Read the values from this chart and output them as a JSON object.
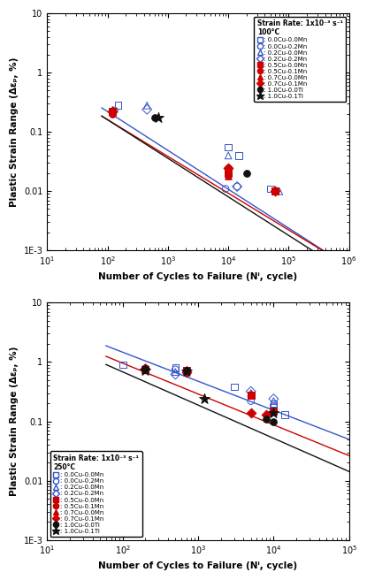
{
  "top": {
    "title_line1": "Strain Rate: 1x10⁻³ s⁻¹",
    "title_line2": "100°C",
    "xlim": [
      10,
      1000000
    ],
    "ylim": [
      0.001,
      10
    ],
    "xlabel": "Number of Cycles to Failure (Nⁱ, cycle)",
    "ylabel": "Plastic Strain Range (Δεₚ, %)",
    "blue_series": {
      "sq": {
        "x": [
          150,
          10000,
          15000,
          50000
        ],
        "y": [
          0.28,
          0.055,
          0.04,
          0.011
        ]
      },
      "ci": {
        "x": [
          130,
          9000,
          14000
        ],
        "y": [
          0.23,
          0.011,
          0.012
        ]
      },
      "tr": {
        "x": [
          450,
          10000,
          70000
        ],
        "y": [
          0.28,
          0.04,
          0.01
        ]
      },
      "di": {
        "x": [
          450,
          14000
        ],
        "y": [
          0.24,
          0.012
        ]
      }
    },
    "red_series": {
      "sq": {
        "x": [
          120,
          10000,
          60000
        ],
        "y": [
          0.22,
          0.02,
          0.01
        ]
      },
      "ci": {
        "x": [
          120,
          10000,
          60000
        ],
        "y": [
          0.2,
          0.025,
          0.01
        ]
      },
      "tr": {
        "x": [
          120,
          10000,
          60000
        ],
        "y": [
          0.24,
          0.018,
          0.01
        ]
      },
      "di": {
        "x": [
          120,
          10000,
          60000
        ],
        "y": [
          0.22,
          0.025,
          0.01
        ]
      }
    },
    "black_series": {
      "ci": {
        "x": [
          600,
          20000
        ],
        "y": [
          0.175,
          0.02
        ]
      },
      "st": {
        "x": [
          700
        ],
        "y": [
          0.175
        ]
      }
    },
    "blue_line": {
      "x0": 80,
      "x1": 1000000,
      "C": 4.5,
      "c": -0.655
    },
    "red_line": {
      "x0": 80,
      "x1": 1000000,
      "C": 2.8,
      "c": -0.62
    },
    "black_line": {
      "x0": 80,
      "x1": 1000000,
      "C": 3.2,
      "c": -0.65
    }
  },
  "bottom": {
    "title_line1": "Strain Rate: 1x10⁻³ s⁻¹",
    "title_line2": "250°C",
    "xlim": [
      10,
      100000
    ],
    "ylim": [
      0.001,
      10
    ],
    "xlabel": "Number of Cycles to Failure (Nⁱ, cycle)",
    "ylabel": "Plastic Strain Range (Δεₚ, %)",
    "blue_series": {
      "sq": {
        "x": [
          100,
          500,
          3000,
          5000,
          10000,
          14000
        ],
        "y": [
          0.9,
          0.8,
          0.38,
          0.28,
          0.2,
          0.13
        ]
      },
      "ci": {
        "x": [
          500,
          700,
          5000,
          10000
        ],
        "y": [
          0.75,
          0.68,
          0.22,
          0.18
        ]
      },
      "tr": {
        "x": [
          500,
          5000,
          10000
        ],
        "y": [
          0.68,
          0.3,
          0.22
        ]
      },
      "di": {
        "x": [
          500,
          5000,
          10000
        ],
        "y": [
          0.62,
          0.32,
          0.24
        ]
      }
    },
    "red_series": {
      "sq": {
        "x": [
          200,
          700,
          5000,
          10000
        ],
        "y": [
          0.75,
          0.72,
          0.28,
          0.15
        ]
      },
      "ci": {
        "x": [
          200,
          700,
          5000,
          10000
        ],
        "y": [
          0.8,
          0.68,
          0.28,
          0.15
        ]
      },
      "tr": {
        "x": [
          200,
          700,
          5000,
          10000
        ],
        "y": [
          0.82,
          0.72,
          0.3,
          0.15
        ]
      },
      "di": {
        "x": [
          200,
          700,
          5000,
          8000
        ],
        "y": [
          0.78,
          0.68,
          0.14,
          0.13
        ]
      }
    },
    "black_series": {
      "ci": {
        "x": [
          200,
          700,
          8000,
          10000
        ],
        "y": [
          0.78,
          0.72,
          0.11,
          0.1
        ]
      },
      "st": {
        "x": [
          200,
          700,
          1200,
          10000
        ],
        "y": [
          0.72,
          0.7,
          0.24,
          0.14
        ]
      }
    },
    "blue_line": {
      "x0": 60,
      "x1": 100000,
      "C": 14.0,
      "c": -0.49
    },
    "red_line": {
      "x0": 60,
      "x1": 100000,
      "C": 10.5,
      "c": -0.52
    },
    "black_line": {
      "x0": 60,
      "x1": 100000,
      "C": 9.0,
      "c": -0.56
    }
  },
  "legend_labels": [
    ": 0.0Cu-0.0Mn",
    ": 0.0Cu-0.2Mn",
    ": 0.2Cu-0.0Mn",
    ": 0.2Cu-0.2Mn",
    ": 0.5Cu-0.0Mn",
    ": 0.5Cu-0.1Mn",
    ": 0.7Cu-0.0Mn",
    ": 0.7Cu-0.1Mn",
    ": 1.0Cu-0.0Ti",
    ": 1.0Cu-0.1Ti"
  ],
  "blue_color": "#3355cc",
  "red_color": "#cc0000",
  "black_color": "#111111"
}
